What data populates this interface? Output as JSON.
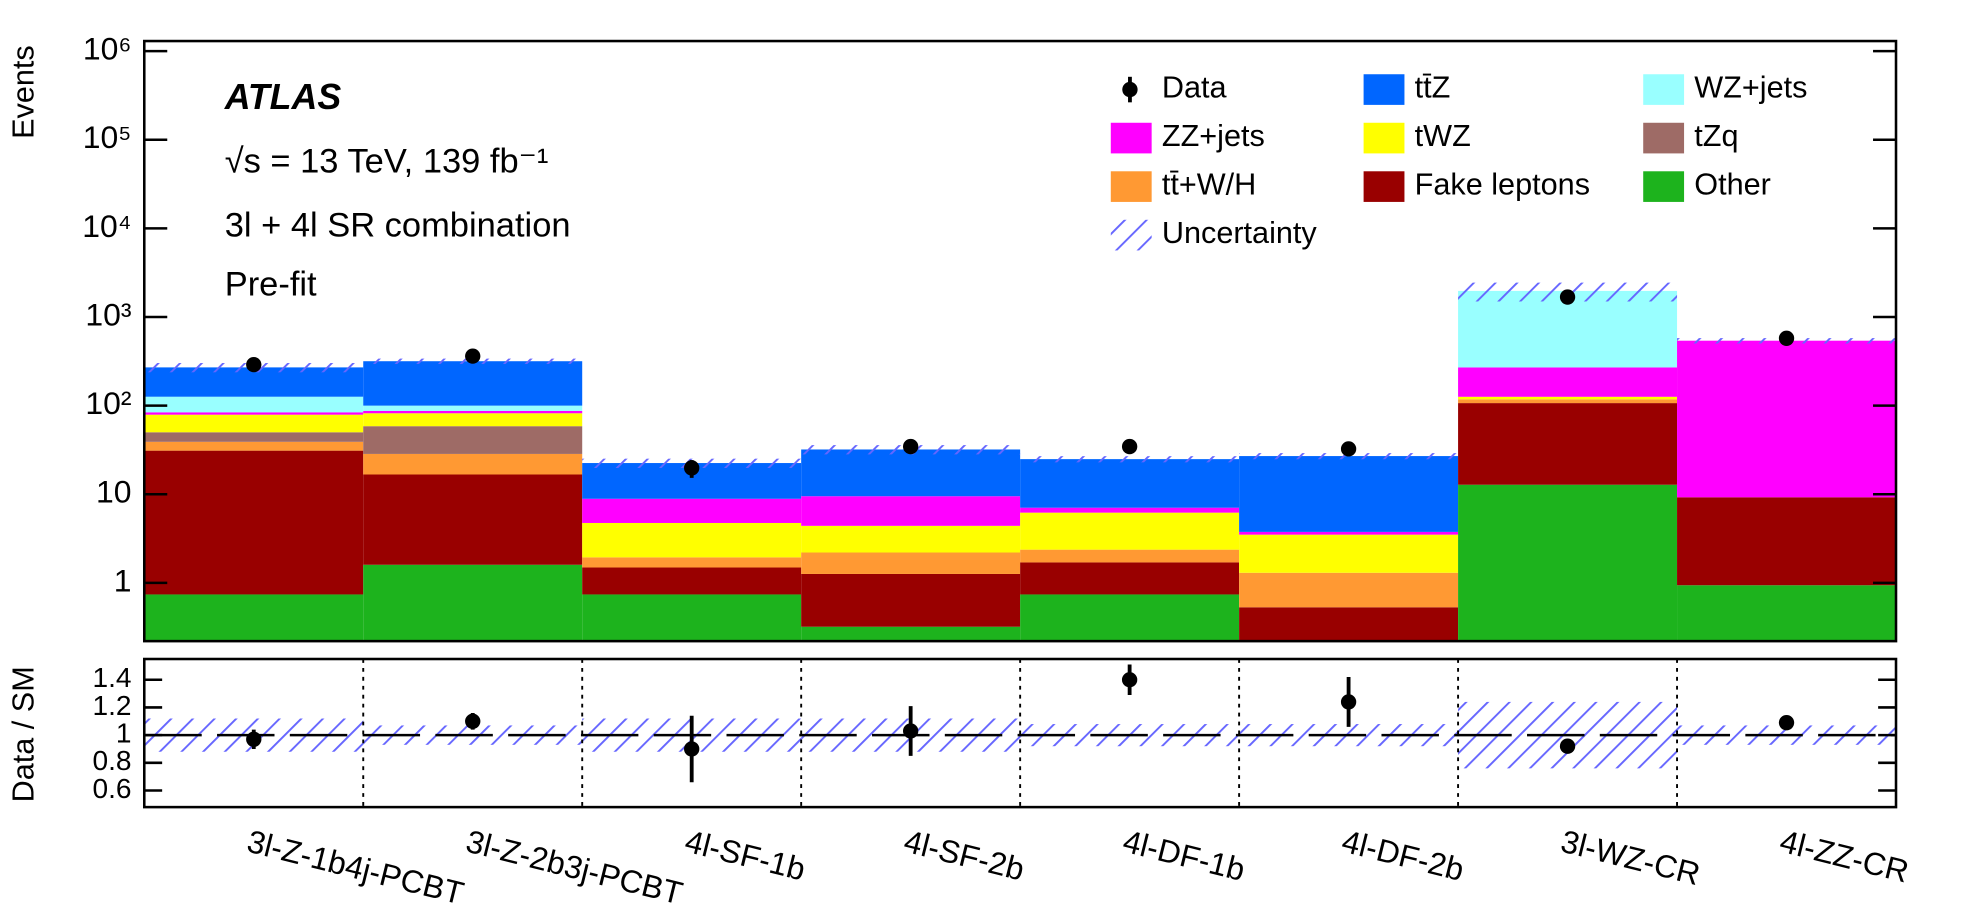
{
  "chart_data": [
    {
      "type": "stacked_bar",
      "ylabel": "Events",
      "log": true,
      "ylim": [
        0.22,
        1300000
      ],
      "yticks": [
        1,
        10,
        {
          "value": 100,
          "label": "10²"
        },
        {
          "value": 1000,
          "label": "10³"
        },
        {
          "value": 10000,
          "label": "10⁴"
        },
        {
          "value": 100000,
          "label": "10⁵"
        },
        {
          "value": 1000000,
          "label": "10⁶"
        }
      ],
      "annotations": [
        "ATLAS",
        "√s = 13 TeV, 139 fb⁻¹",
        "3l + 4l SR combination",
        "Pre-fit"
      ],
      "categories": [
        "3l-Z-1b4j-PCBT",
        "3l-Z-2b3j-PCBT",
        "4l-SF-1b",
        "4l-SF-2b",
        "4l-DF-1b",
        "4l-DF-2b",
        "3l-WZ-CR",
        "4l-ZZ-CR"
      ],
      "series": [
        {
          "name": "Other",
          "color": "#1db31d",
          "values": [
            0.74,
            1.6,
            0.74,
            0.32,
            0.74,
            0.2,
            12.8,
            0.94
          ]
        },
        {
          "name": "Fake leptons",
          "color": "#990000",
          "values": [
            30.3,
            15.1,
            0.75,
            0.94,
            0.96,
            0.33,
            94,
            8.3
          ]
        },
        {
          "name": "tt̄+W/H",
          "color": "#ff9933",
          "values": [
            8,
            11.8,
            0.45,
            0.94,
            0.67,
            0.77,
            11,
            0
          ]
        },
        {
          "name": "tZq",
          "color": "#9e6b66",
          "values": [
            11,
            30.1,
            0,
            0,
            0,
            0,
            0,
            0
          ]
        },
        {
          "name": "tWZ",
          "color": "#ffff00",
          "values": [
            29,
            23.4,
            2.8,
            2.2,
            3.83,
            2.2,
            8,
            0
          ]
        },
        {
          "name": "ZZ+jets",
          "color": "#ff00ff",
          "values": [
            5,
            5,
            4.15,
            5.1,
            0.85,
            0.26,
            144,
            531
          ]
        },
        {
          "name": "WZ+jets",
          "color": "#99ffff",
          "values": [
            42,
            13,
            0,
            0,
            0,
            0,
            1700,
            0
          ]
        },
        {
          "name": "tt̄Z",
          "color": "#0066ff",
          "values": [
            144,
            217,
            13.6,
            22.5,
            17.85,
            23.2,
            0,
            0
          ]
        }
      ],
      "data": {
        "name": "Data",
        "color": "#000000",
        "values": [
          290,
          362,
          19.8,
          34.5,
          34.5,
          32.5,
          1680,
          575
        ],
        "errors": [
          17,
          19,
          4.5,
          6,
          6,
          5.7,
          41,
          24
        ]
      },
      "uncertainty": {
        "name": "Uncertainty",
        "color": "#6666ff"
      }
    },
    {
      "type": "ratio",
      "ylabel": "Data / SM",
      "ylim": [
        0.48,
        1.55
      ],
      "yticks": [
        0.6,
        0.8,
        1,
        1.2,
        1.4
      ],
      "values": [
        0.97,
        1.1,
        0.9,
        1.03,
        1.4,
        1.24,
        0.92,
        1.09
      ],
      "errors": [
        0.07,
        0.06,
        0.24,
        0.18,
        0.11,
        0.18,
        0.02,
        0.03
      ],
      "uncertainty": [
        0.12,
        0.07,
        0.12,
        0.12,
        0.08,
        0.08,
        0.24,
        0.07
      ]
    }
  ]
}
